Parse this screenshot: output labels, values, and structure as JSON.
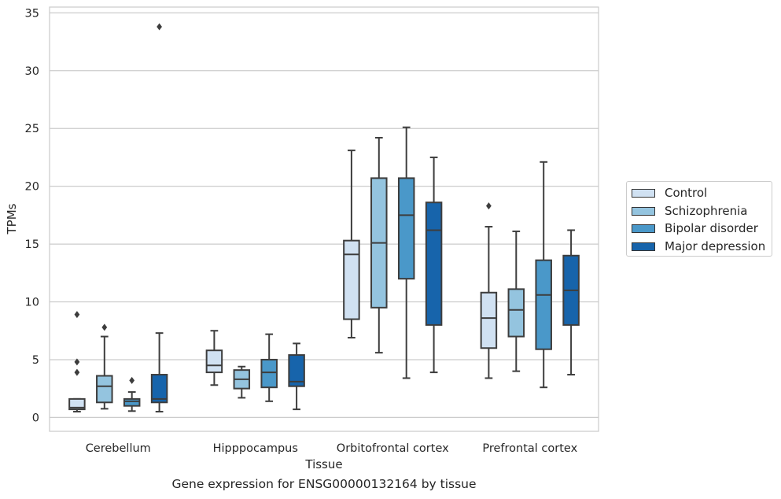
{
  "chart_data": {
    "type": "box",
    "title": "",
    "xlabel": "Tissue",
    "ylabel": "TPMs",
    "ylim": [
      -1.2,
      35.5
    ],
    "yticks": [
      0,
      5,
      10,
      15,
      20,
      25,
      30,
      35
    ],
    "grid": "horizontal",
    "legend_position": "right",
    "categories": [
      "Cerebellum",
      "Hipppocampus",
      "Orbitofrontal cortex",
      "Prefrontal cortex"
    ],
    "series": [
      {
        "name": "Control",
        "color": "#d0e1f2",
        "boxes": [
          {
            "whisker_low": 0.5,
            "q1": 0.7,
            "median": 0.85,
            "q3": 1.6,
            "whisker_high": 1.6,
            "outliers": [
              3.9,
              4.8,
              8.9
            ]
          },
          {
            "whisker_low": 2.8,
            "q1": 3.9,
            "median": 4.5,
            "q3": 5.8,
            "whisker_high": 7.5,
            "outliers": []
          },
          {
            "whisker_low": 6.9,
            "q1": 8.5,
            "median": 14.1,
            "q3": 15.3,
            "whisker_high": 23.1,
            "outliers": []
          },
          {
            "whisker_low": 3.4,
            "q1": 6.0,
            "median": 8.6,
            "q3": 10.8,
            "whisker_high": 16.5,
            "outliers": [
              18.3
            ]
          }
        ]
      },
      {
        "name": "Schizophrenia",
        "color": "#94c4df",
        "boxes": [
          {
            "whisker_low": 0.75,
            "q1": 1.3,
            "median": 2.7,
            "q3": 3.6,
            "whisker_high": 7.0,
            "outliers": [
              7.8
            ]
          },
          {
            "whisker_low": 1.7,
            "q1": 2.5,
            "median": 3.3,
            "q3": 4.1,
            "whisker_high": 4.4,
            "outliers": []
          },
          {
            "whisker_low": 5.6,
            "q1": 9.5,
            "median": 15.1,
            "q3": 20.7,
            "whisker_high": 24.2,
            "outliers": []
          },
          {
            "whisker_low": 4.0,
            "q1": 7.0,
            "median": 9.3,
            "q3": 11.1,
            "whisker_high": 16.1,
            "outliers": []
          }
        ]
      },
      {
        "name": "Bipolar disorder",
        "color": "#4a98c9",
        "boxes": [
          {
            "whisker_low": 0.55,
            "q1": 1.0,
            "median": 1.4,
            "q3": 1.6,
            "whisker_high": 2.2,
            "outliers": [
              3.2
            ]
          },
          {
            "whisker_low": 1.4,
            "q1": 2.6,
            "median": 3.9,
            "q3": 5.0,
            "whisker_high": 7.2,
            "outliers": []
          },
          {
            "whisker_low": 3.4,
            "q1": 12.0,
            "median": 17.5,
            "q3": 20.7,
            "whisker_high": 25.1,
            "outliers": []
          },
          {
            "whisker_low": 2.6,
            "q1": 5.9,
            "median": 10.6,
            "q3": 13.6,
            "whisker_high": 22.1,
            "outliers": []
          }
        ]
      },
      {
        "name": "Major depression",
        "color": "#1764ab",
        "boxes": [
          {
            "whisker_low": 0.5,
            "q1": 1.3,
            "median": 1.6,
            "q3": 3.7,
            "whisker_high": 7.3,
            "outliers": [
              33.8
            ]
          },
          {
            "whisker_low": 0.7,
            "q1": 2.7,
            "median": 3.1,
            "q3": 5.4,
            "whisker_high": 6.4,
            "outliers": []
          },
          {
            "whisker_low": 3.9,
            "q1": 8.0,
            "median": 16.2,
            "q3": 18.6,
            "whisker_high": 22.5,
            "outliers": []
          },
          {
            "whisker_low": 3.7,
            "q1": 8.0,
            "median": 11.0,
            "q3": 14.0,
            "whisker_high": 16.2,
            "outliers": []
          }
        ]
      }
    ]
  },
  "caption": "Gene expression for ENSG00000132164 by tissue"
}
